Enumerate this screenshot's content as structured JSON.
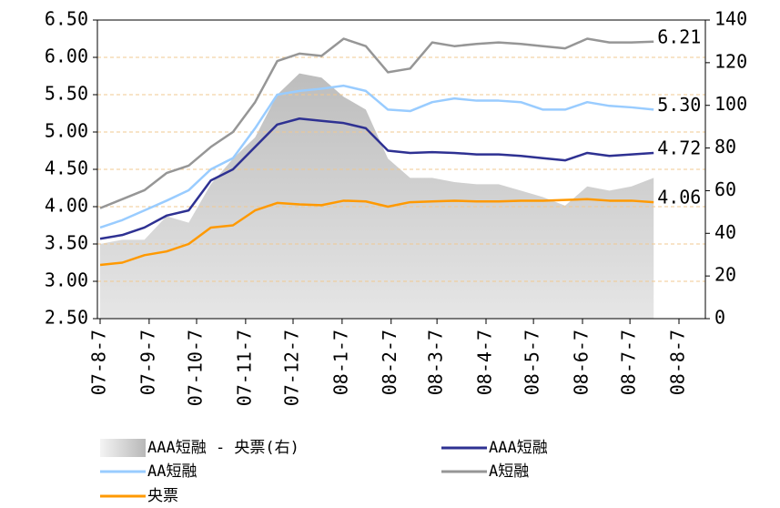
{
  "chart_data": {
    "type": "line",
    "x": [
      "2007-08-07",
      "2007-08-21",
      "2007-09-04",
      "2007-09-18",
      "2007-10-02",
      "2007-10-16",
      "2007-10-30",
      "2007-11-13",
      "2007-11-27",
      "2007-12-11",
      "2007-12-25",
      "2008-01-08",
      "2008-01-22",
      "2008-02-05",
      "2008-02-19",
      "2008-03-04",
      "2008-03-18",
      "2008-04-01",
      "2008-04-15",
      "2008-04-29",
      "2008-05-13",
      "2008-05-27",
      "2008-06-10",
      "2008-06-24",
      "2008-07-08",
      "2008-07-22"
    ],
    "xlim": [
      "2007-08-07",
      "2008-08-07"
    ],
    "xticks": [
      {
        "value": "2007-08-07",
        "label": "07-8-7"
      },
      {
        "value": "2007-09-07",
        "label": "07-9-7"
      },
      {
        "value": "2007-10-07",
        "label": "07-10-7"
      },
      {
        "value": "2007-11-07",
        "label": "07-11-7"
      },
      {
        "value": "2007-12-07",
        "label": "07-12-7"
      },
      {
        "value": "2008-01-07",
        "label": "08-1-7"
      },
      {
        "value": "2008-02-07",
        "label": "08-2-7"
      },
      {
        "value": "2008-03-07",
        "label": "08-3-7"
      },
      {
        "value": "2008-04-07",
        "label": "08-4-7"
      },
      {
        "value": "2008-05-07",
        "label": "08-5-7"
      },
      {
        "value": "2008-06-07",
        "label": "08-6-7"
      },
      {
        "value": "2008-07-07",
        "label": "08-7-7"
      },
      {
        "value": "2008-08-07",
        "label": "08-8-7"
      }
    ],
    "ylim": [
      2.5,
      6.5
    ],
    "yticks": [
      {
        "value": 2.5,
        "label": "2.50"
      },
      {
        "value": 3,
        "label": "3.00"
      },
      {
        "value": 3.5,
        "label": "3.50"
      },
      {
        "value": 4,
        "label": "4.00"
      },
      {
        "value": 4.5,
        "label": "4.50"
      },
      {
        "value": 5,
        "label": "5.00"
      },
      {
        "value": 5.5,
        "label": "5.50"
      },
      {
        "value": 6,
        "label": "6.00"
      },
      {
        "value": 6.5,
        "label": "6.50"
      }
    ],
    "y2lim": [
      0,
      140
    ],
    "y2ticks": [
      0,
      20,
      40,
      60,
      80,
      100,
      120,
      140
    ],
    "grid": true,
    "series": [
      {
        "name": "AAA短融 - 央票(右)",
        "type": "area",
        "axis": "y2",
        "color": "#c8c8c8",
        "values": [
          35,
          37,
          37,
          48,
          45,
          63,
          75,
          85,
          105,
          115,
          113,
          104,
          98,
          75,
          66,
          66,
          64,
          63,
          63,
          60,
          57,
          53,
          62,
          60,
          62,
          66
        ]
      },
      {
        "name": "AAA短融",
        "color": "#2e3192",
        "values": [
          3.57,
          3.62,
          3.72,
          3.88,
          3.95,
          4.35,
          4.5,
          4.8,
          5.1,
          5.18,
          5.15,
          5.12,
          5.05,
          4.75,
          4.72,
          4.73,
          4.72,
          4.7,
          4.7,
          4.68,
          4.65,
          4.62,
          4.72,
          4.68,
          4.7,
          4.72
        ]
      },
      {
        "name": "AA短融",
        "color": "#99ccff",
        "values": [
          3.72,
          3.82,
          3.95,
          4.08,
          4.22,
          4.5,
          4.65,
          5.05,
          5.5,
          5.55,
          5.58,
          5.62,
          5.55,
          5.3,
          5.28,
          5.4,
          5.45,
          5.42,
          5.42,
          5.4,
          5.3,
          5.3,
          5.4,
          5.35,
          5.33,
          5.3
        ]
      },
      {
        "name": "A短融",
        "color": "#969696",
        "values": [
          3.98,
          4.1,
          4.22,
          4.45,
          4.55,
          4.8,
          5.0,
          5.4,
          5.95,
          6.05,
          6.02,
          6.25,
          6.15,
          5.8,
          5.85,
          6.2,
          6.15,
          6.18,
          6.2,
          6.18,
          6.15,
          6.12,
          6.25,
          6.2,
          6.2,
          6.21
        ]
      },
      {
        "name": "央票",
        "color": "#ff9900",
        "values": [
          3.22,
          3.25,
          3.35,
          3.4,
          3.5,
          3.72,
          3.75,
          3.95,
          4.05,
          4.03,
          4.02,
          4.08,
          4.07,
          4.0,
          4.06,
          4.07,
          4.08,
          4.07,
          4.07,
          4.08,
          4.08,
          4.09,
          4.1,
          4.08,
          4.08,
          4.06
        ]
      }
    ],
    "annotations": [
      "6.21",
      "5.30",
      "4.72",
      "4.06"
    ]
  }
}
